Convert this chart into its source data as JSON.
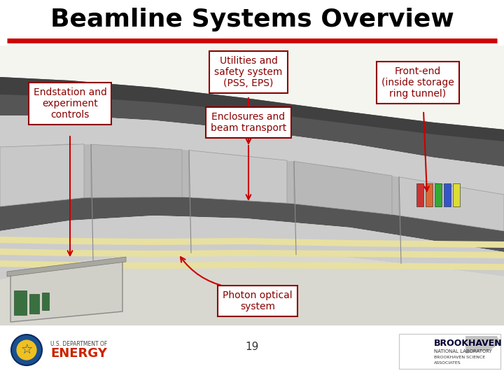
{
  "title": "Beamline Systems Overview",
  "title_fontsize": 26,
  "title_fontweight": "bold",
  "title_color": "#000000",
  "red_line_color": "#cc0000",
  "background_color": "#ffffff",
  "labels": {
    "endstation": "Endstation and\nexperiment\ncontrols",
    "utilities": "Utilities and\nsafety system\n(PSS, EPS)",
    "enclosures": "Enclosures and\nbeam transport",
    "photon": "Photon optical\nsystem",
    "frontend": "Front-end\n(inside storage\nring tunnel)"
  },
  "label_fontsize": 10,
  "label_color": "#8b0000",
  "box_edge_color": "#8b0000",
  "box_face_color": "#ffffff",
  "arrow_color": "#cc0000",
  "page_number": "19",
  "colors": {
    "sky": "#f5f5f0",
    "dark_roof": "#555555",
    "mid_gray": "#888888",
    "light_gray": "#aaaaaa",
    "lighter_gray": "#cccccc",
    "floor": "#e0e0d8",
    "stripe_yellow": "#e8e0a0",
    "building_wall": "#b8b8b8",
    "building_dark": "#707070"
  }
}
